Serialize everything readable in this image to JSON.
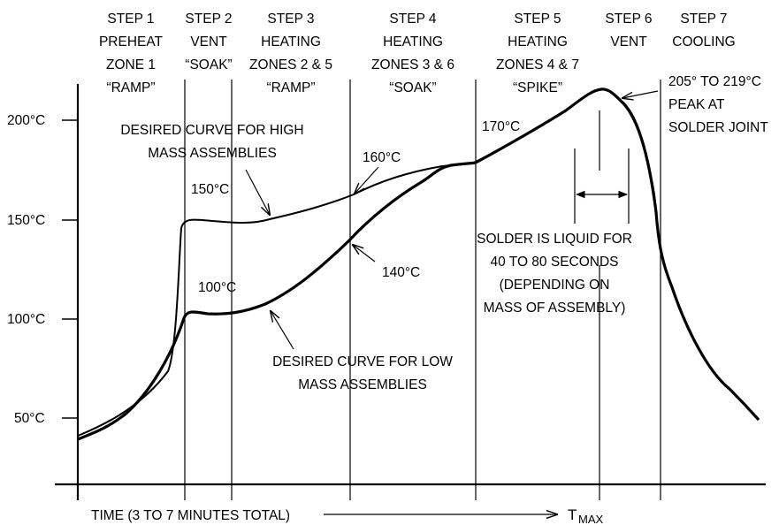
{
  "steps": [
    {
      "lines": [
        "STEP 1",
        "PREHEAT",
        "ZONE 1",
        "“RAMP”"
      ]
    },
    {
      "lines": [
        "STEP 2",
        "VENT",
        "“SOAK”"
      ]
    },
    {
      "lines": [
        "STEP 3",
        "HEATING",
        "ZONES 2 & 5",
        "“RAMP”"
      ]
    },
    {
      "lines": [
        "STEP 4",
        "HEATING",
        "ZONES 3 & 6",
        "“SOAK”"
      ]
    },
    {
      "lines": [
        "STEP 5",
        "HEATING",
        "ZONES 4 & 7",
        "“SPIKE”"
      ]
    },
    {
      "lines": [
        "STEP 6",
        "VENT"
      ]
    },
    {
      "lines": [
        "STEP 7",
        "COOLING"
      ]
    }
  ],
  "y_ticks": [
    "200°C",
    "150°C",
    "100°C",
    "50°C"
  ],
  "annotations": {
    "high_curve": [
      "DESIRED CURVE FOR HIGH",
      "MASS ASSEMBLIES"
    ],
    "low_curve": [
      "DESIRED CURVE FOR LOW",
      "MASS ASSEMBLIES"
    ],
    "t150": "150°C",
    "t160": "160°C",
    "t170": "170°C",
    "t100": "100°C",
    "t140": "140°C",
    "peak": [
      "205° TO 219°C",
      "PEAK AT",
      "SOLDER JOINT"
    ],
    "liquid": [
      "SOLDER IS LIQUID FOR",
      "40 TO 80 SECONDS",
      "(DEPENDING ON",
      "MASS OF ASSEMBLY)"
    ]
  },
  "x_axis": {
    "time_label": "TIME (3 TO 7 MINUTES TOTAL)",
    "tmax_main": "T",
    "tmax_sub": "MAX"
  }
}
